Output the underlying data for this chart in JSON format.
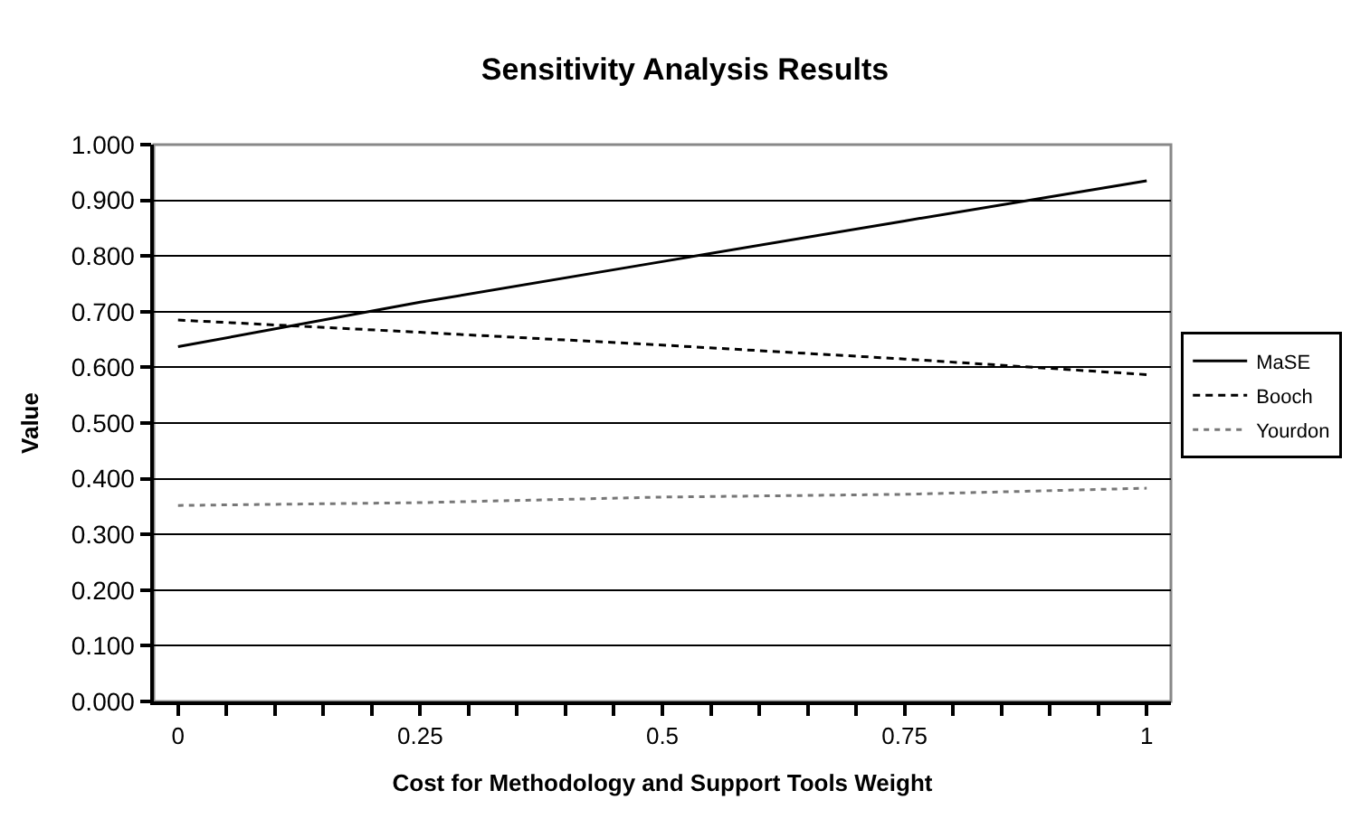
{
  "chart_data": {
    "type": "line",
    "title": "Sensitivity Analysis Results",
    "xlabel": "Cost for Methodology and Support Tools Weight",
    "ylabel": "Value",
    "x": [
      0,
      0.25,
      0.5,
      0.75,
      1
    ],
    "series": [
      {
        "name": "MaSE",
        "color": "#000000",
        "line_style": "solid",
        "values": [
          0.637,
          0.717,
          0.79,
          0.863,
          0.935
        ]
      },
      {
        "name": "Booch",
        "color": "#000000",
        "line_style": "dashed",
        "values": [
          0.685,
          0.663,
          0.64,
          0.615,
          0.587
        ]
      },
      {
        "name": "Yourdon",
        "color": "#777777",
        "line_style": "dotted",
        "values": [
          0.352,
          0.357,
          0.367,
          0.372,
          0.383
        ]
      }
    ],
    "xlim": [
      -0.025,
      1.025
    ],
    "xticks": [
      0,
      {
        "value": 0.05,
        "label": null
      },
      {
        "value": 0.1,
        "label": null
      },
      {
        "value": 0.15,
        "label": null
      },
      {
        "value": 0.2,
        "label": null
      },
      0.25,
      {
        "value": 0.3,
        "label": null
      },
      {
        "value": 0.35,
        "label": null
      },
      {
        "value": 0.4,
        "label": null
      },
      {
        "value": 0.45,
        "label": null
      },
      0.5,
      {
        "value": 0.55,
        "label": null
      },
      {
        "value": 0.6,
        "label": null
      },
      {
        "value": 0.65,
        "label": null
      },
      {
        "value": 0.7,
        "label": null
      },
      0.75,
      {
        "value": 0.8,
        "label": null
      },
      {
        "value": 0.85,
        "label": null
      },
      {
        "value": 0.9,
        "label": null
      },
      {
        "value": 0.95,
        "label": null
      },
      1
    ],
    "ylim": [
      0,
      1
    ],
    "yticks": [
      {
        "value": 0,
        "label": "0.000"
      },
      {
        "value": 0.1,
        "label": "0.100"
      },
      {
        "value": 0.2,
        "label": "0.200"
      },
      {
        "value": 0.3,
        "label": "0.300"
      },
      {
        "value": 0.4,
        "label": "0.400"
      },
      {
        "value": 0.5,
        "label": "0.500"
      },
      {
        "value": 0.6,
        "label": "0.600"
      },
      {
        "value": 0.7,
        "label": "0.700"
      },
      {
        "value": 0.8,
        "label": "0.800"
      },
      {
        "value": 0.9,
        "label": "0.900"
      },
      {
        "value": 1,
        "label": "1.000"
      }
    ],
    "grid": "y",
    "legend": "right",
    "marker": "none"
  }
}
